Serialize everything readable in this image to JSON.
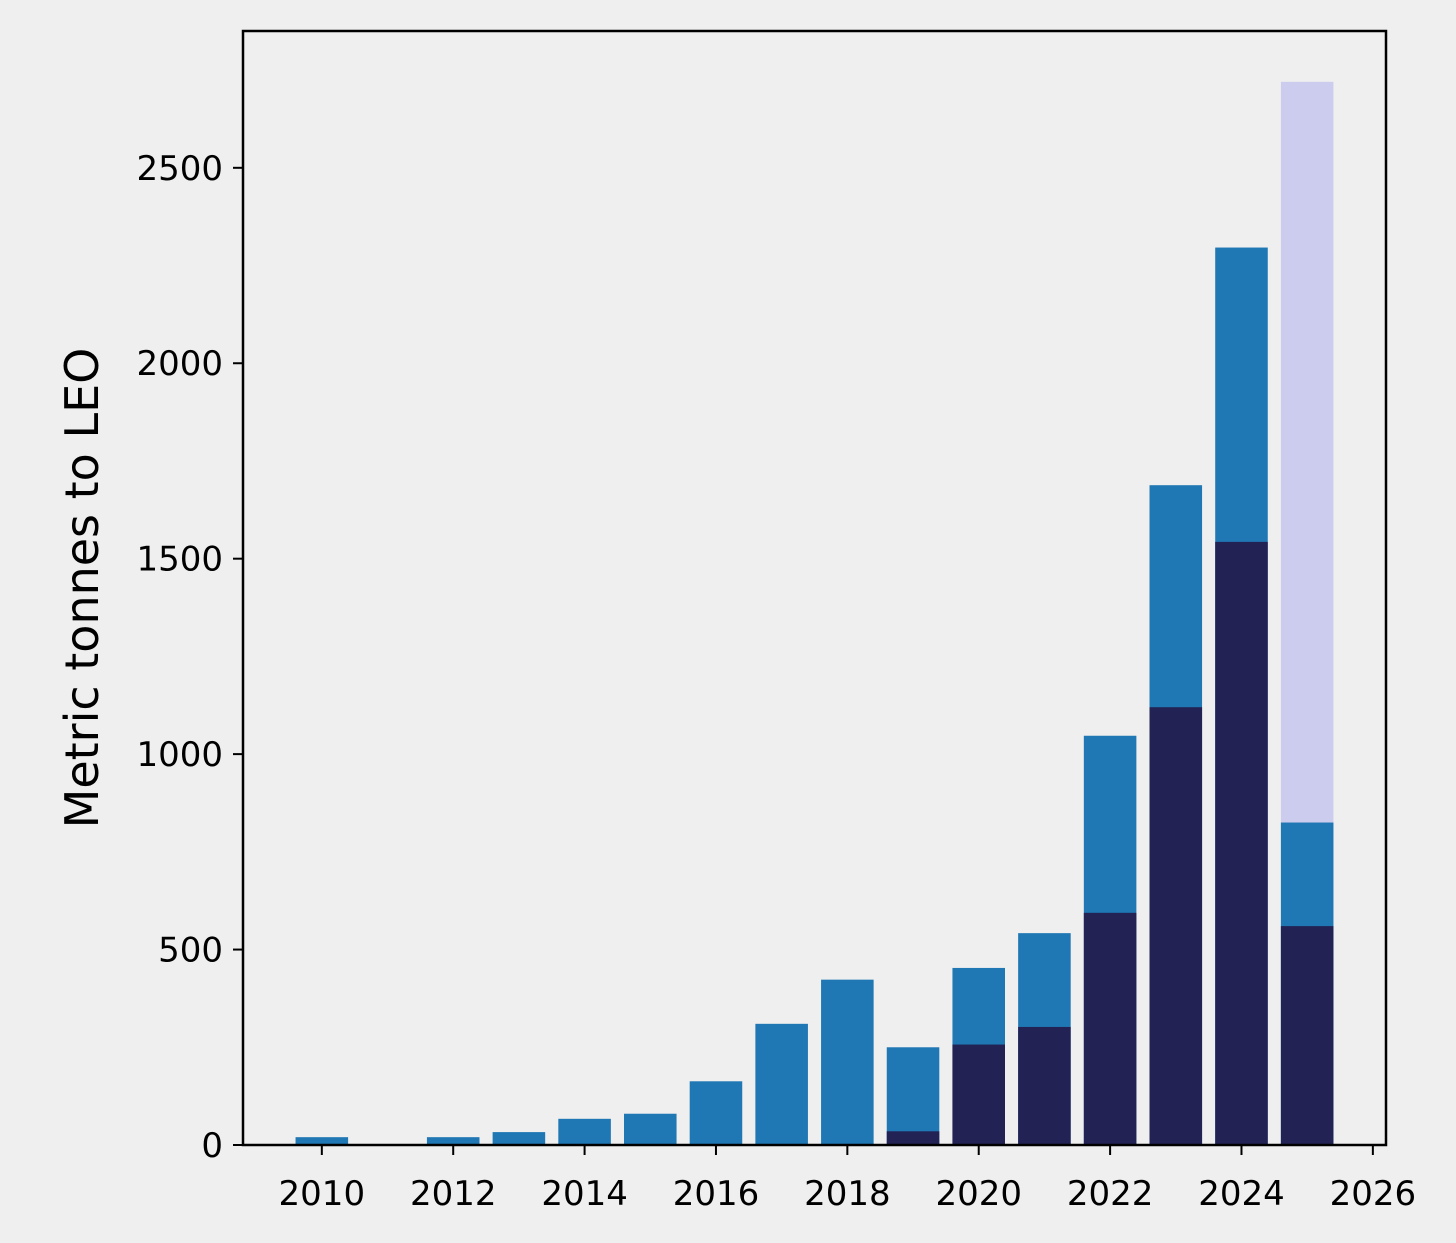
{
  "chart_data": {
    "type": "bar",
    "ylabel": "Metric tonnes to LEO",
    "xlim": [
      2008.8,
      2026.2
    ],
    "ylim": [
      0,
      2850
    ],
    "x_ticks": [
      2010,
      2012,
      2014,
      2016,
      2018,
      2020,
      2022,
      2024,
      2026
    ],
    "y_ticks": [
      0,
      500,
      1000,
      1500,
      2000,
      2500
    ],
    "grid": false,
    "colors": {
      "background": "#efefef",
      "top_segment": "#1f77b4",
      "bottom_segment": "#222255",
      "projection": "#ccccee"
    },
    "years": [
      2010,
      2011,
      2012,
      2013,
      2014,
      2015,
      2016,
      2017,
      2018,
      2019,
      2020,
      2021,
      2022,
      2023,
      2024,
      2025
    ],
    "totals": [
      20,
      0,
      20,
      33,
      67,
      80,
      163,
      310,
      423,
      250,
      453,
      542,
      1047,
      1688,
      2296,
      825
    ],
    "bottom_segment_values": [
      0,
      0,
      0,
      0,
      0,
      0,
      0,
      0,
      0,
      35,
      257,
      302,
      594,
      1120,
      1543,
      560
    ],
    "projection": {
      "year": 2025,
      "value": 2720
    }
  }
}
